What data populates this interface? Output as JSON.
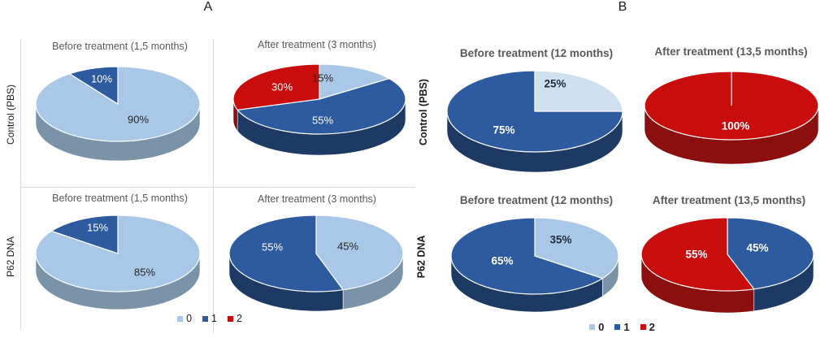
{
  "figure": {
    "panel_a_label": "A",
    "panel_b_label": "B"
  },
  "colors": {
    "category0_light_blue": "#a9c7e7",
    "category0_pale_blue": "#cfe0f0",
    "category1_dark_blue": "#2e5b9f",
    "category2_red": "#c90d0d",
    "side_light_blue": "#7b93a8",
    "side_pale_blue": "#9fb4c6",
    "side_dark_blue": "#1c3a64",
    "side_red": "#8c0f0f",
    "grid_line": "#d9d9d9",
    "title_gray": "#595959"
  },
  "legend": {
    "items": [
      {
        "label": "0",
        "color": "#a9c7e7"
      },
      {
        "label": "1",
        "color": "#2e5b9f"
      },
      {
        "label": "2",
        "color": "#c90d0d"
      }
    ]
  },
  "chart_data": [
    {
      "type": "pie",
      "panel": "A",
      "row": "Control (PBS)",
      "title": "Before treatment (1,5 months)",
      "unit": "%",
      "slices": [
        {
          "category": "0",
          "value": 90,
          "label": "90%",
          "color": "#a9c7e7",
          "side": "#7b93a8",
          "text": "#262626",
          "label_pos": [
            25,
            19
          ]
        },
        {
          "category": "1",
          "value": 10,
          "label": "10%",
          "color": "#2e5b9f",
          "side": "#1c3a64",
          "text": "#ffffff",
          "label_pos": [
            -20,
            -31
          ]
        }
      ]
    },
    {
      "type": "pie",
      "panel": "A",
      "row": "Control (PBS)",
      "title": "After treatment (3 months)",
      "unit": "%",
      "slices": [
        {
          "category": "0",
          "value": 15,
          "label": "15%",
          "color": "#a9c7e7",
          "side": "#7b93a8",
          "text": "#262626",
          "label_pos": [
            4,
            -26
          ]
        },
        {
          "category": "1",
          "value": 55,
          "label": "55%",
          "color": "#2e5b9f",
          "side": "#1c3a64",
          "text": "#ffffff",
          "label_pos": [
            4,
            26
          ]
        },
        {
          "category": "2",
          "value": 30,
          "label": "30%",
          "color": "#c90d0d",
          "side": "#8c0f0f",
          "text": "#ffffff",
          "label_pos": [
            -46,
            -15
          ]
        }
      ]
    },
    {
      "type": "pie",
      "panel": "A",
      "row": "P62 DNA",
      "title": "Before treatment (1,5 months)",
      "unit": "%",
      "slices": [
        {
          "category": "0",
          "value": 85,
          "label": "85%",
          "color": "#a9c7e7",
          "side": "#7b93a8",
          "text": "#262626",
          "label_pos": [
            33,
            23
          ]
        },
        {
          "category": "1",
          "value": 15,
          "label": "15%",
          "color": "#2e5b9f",
          "side": "#1c3a64",
          "text": "#ffffff",
          "label_pos": [
            -25,
            -32
          ]
        }
      ]
    },
    {
      "type": "pie",
      "panel": "A",
      "row": "P62 DNA",
      "title": "After treatment (3 months)",
      "unit": "%",
      "slices": [
        {
          "category": "0",
          "value": 45,
          "label": "45%",
          "color": "#a9c7e7",
          "side": "#7b93a8",
          "text": "#262626",
          "label_pos": [
            39,
            -9
          ]
        },
        {
          "category": "1",
          "value": 55,
          "label": "55%",
          "color": "#2e5b9f",
          "side": "#1c3a64",
          "text": "#ffffff",
          "label_pos": [
            -54,
            -8
          ]
        }
      ]
    },
    {
      "type": "pie",
      "panel": "B",
      "row": "Control (PBS)",
      "title": "Before treatment (12 months)",
      "unit": "%",
      "slices": [
        {
          "category": "0",
          "value": 25,
          "label": "25%",
          "color": "#cfe0f0",
          "side": "#9fb4c6",
          "text": "#1f2d3d",
          "label_pos": [
            25,
            -34
          ]
        },
        {
          "category": "1",
          "value": 75,
          "label": "75%",
          "color": "#2e5b9f",
          "side": "#1c3a64",
          "text": "#ffffff",
          "label_pos": [
            -38,
            23
          ]
        }
      ]
    },
    {
      "type": "pie",
      "panel": "B",
      "row": "Control (PBS)",
      "title": "After treatment (13,5 months)",
      "unit": "%",
      "slices": [
        {
          "category": "2",
          "value": 100,
          "label": "100%",
          "color": "#c90d0d",
          "side": "#8c0f0f",
          "text": "#ffffff",
          "label_pos": [
            5,
            25
          ]
        }
      ]
    },
    {
      "type": "pie",
      "panel": "B",
      "row": "P62 DNA",
      "title": "Before treatment (12 months)",
      "unit": "%",
      "slices": [
        {
          "category": "0",
          "value": 35,
          "label": "35%",
          "color": "#a9c7e7",
          "side": "#7b93a8",
          "text": "#1f2d3d",
          "label_pos": [
            32,
            -20
          ]
        },
        {
          "category": "1",
          "value": 65,
          "label": "65%",
          "color": "#2e5b9f",
          "side": "#1c3a64",
          "text": "#ffffff",
          "label_pos": [
            -40,
            6
          ]
        }
      ]
    },
    {
      "type": "pie",
      "panel": "B",
      "row": "P62 DNA",
      "title": "After treatment (13,5 months)",
      "unit": "%",
      "slices": [
        {
          "category": "1",
          "value": 45,
          "label": "45%",
          "color": "#2e5b9f",
          "side": "#1c3a64",
          "text": "#ffffff",
          "label_pos": [
            37,
            -8
          ]
        },
        {
          "category": "2",
          "value": 55,
          "label": "55%",
          "color": "#c90d0d",
          "side": "#8c0f0f",
          "text": "#ffffff",
          "label_pos": [
            -38,
            0
          ]
        }
      ]
    }
  ]
}
